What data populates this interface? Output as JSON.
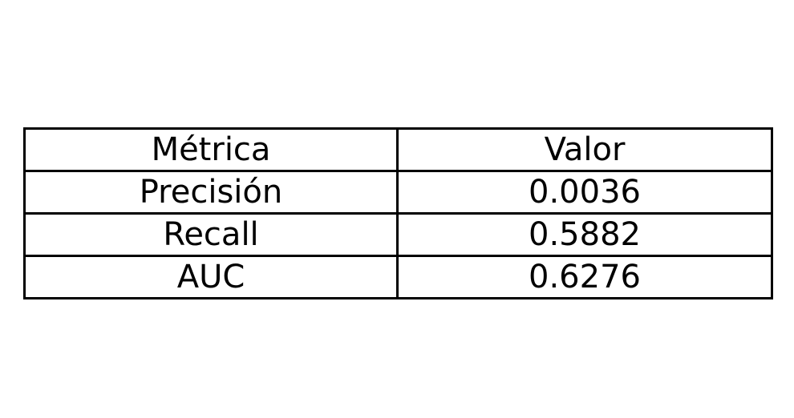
{
  "chart_data": {
    "type": "table",
    "columns": [
      "Métrica",
      "Valor"
    ],
    "rows": [
      [
        "Precisión",
        "0.0036"
      ],
      [
        "Recall",
        "0.5882"
      ],
      [
        "AUC",
        "0.6276"
      ]
    ]
  }
}
